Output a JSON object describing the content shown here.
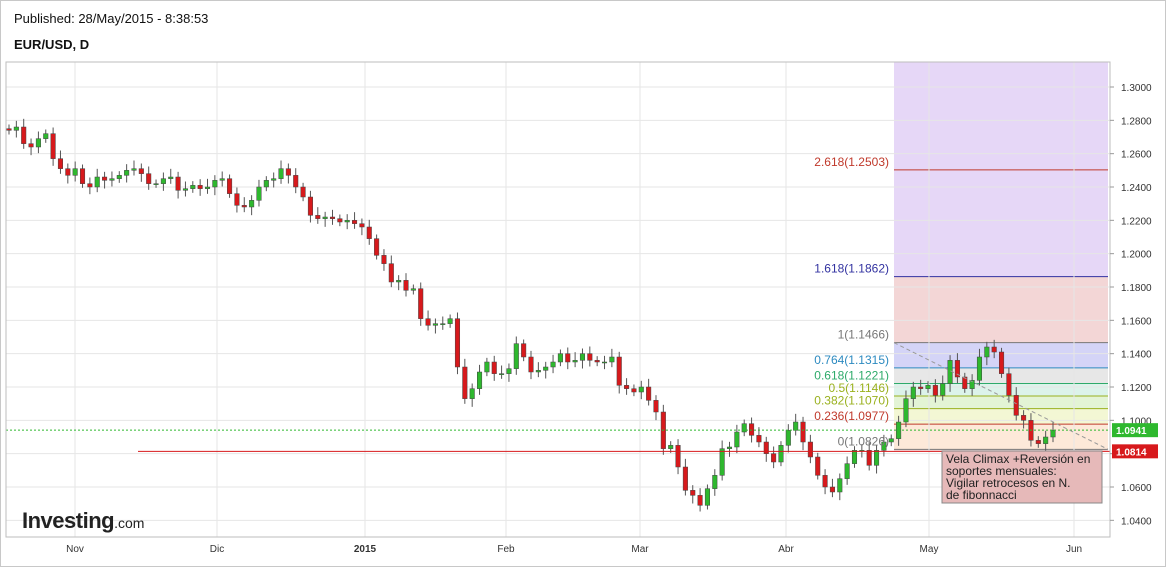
{
  "header": {
    "published": "Published: 28/May/2015 - 8:38:53",
    "symbol": "EUR/USD, D"
  },
  "brand": {
    "name": "Investing",
    "suffix": ".com"
  },
  "colors": {
    "up": "#2eb82e",
    "down": "#d7191c",
    "support_line": "#d7191c",
    "price_label_bg": "#d7191c",
    "last_label_bg": "#2eb82e",
    "grid": "#e6e6e6"
  },
  "chart_data": {
    "type": "candlestick",
    "title": "EUR/USD, D",
    "x_labels": [
      "Nov",
      "Dic",
      "2015",
      "Feb",
      "Mar",
      "Abr",
      "May",
      "Jun"
    ],
    "y_ticks": [
      "1.0400",
      "1.0600",
      "1.0800",
      "1.1000",
      "1.1200",
      "1.1400",
      "1.1600",
      "1.1800",
      "1.2000",
      "1.2200",
      "1.2400",
      "1.2600",
      "1.2800",
      "1.3000"
    ],
    "ylim": [
      1.03,
      1.315
    ],
    "grid": true,
    "last_price": "1.0941",
    "support_level": "1.0814",
    "fibonacci": [
      {
        "label": "0(1.0826)",
        "value": 1.0826,
        "band": "#f6dede"
      },
      {
        "label": "0.236(1.0977)",
        "value": 1.0977,
        "band": "#fde9d9"
      },
      {
        "label": "0.382(1.1070)",
        "value": 1.107,
        "band": "#f3f7d4"
      },
      {
        "label": "0.5(1.1146)",
        "value": 1.1146,
        "band": "#e3f4d5"
      },
      {
        "label": "0.618(1.1221)",
        "value": 1.1221,
        "band": "#dcf3ea"
      },
      {
        "label": "0.764(1.1315)",
        "value": 1.1315,
        "band": "#e7e7e7"
      },
      {
        "label": "1(1.1466)",
        "value": 1.1466,
        "band": "#d4d4f7"
      },
      {
        "label": "1.618(1.1862)",
        "value": 1.1862,
        "band": "#f3d6d6"
      },
      {
        "label": "2.618(1.2503)",
        "value": 1.2503,
        "band": "#e6d7f7"
      }
    ],
    "fib_label_colors": [
      "#777777",
      "#c0392b",
      "#9ab11e",
      "#9ab11e",
      "#2eaa6a",
      "#2c8ac0",
      "#777777",
      "#3232a0",
      "#c0392b"
    ],
    "annotation": "Vela Climax +Reversión en soportes mensuales: Vigilar retrocesos en N. de fibonnacci",
    "closes": [
      1.274,
      1.276,
      1.266,
      1.264,
      1.269,
      1.272,
      1.257,
      1.251,
      1.247,
      1.251,
      1.242,
      1.24,
      1.246,
      1.244,
      1.245,
      1.247,
      1.25,
      1.251,
      1.248,
      1.242,
      1.242,
      1.245,
      1.246,
      1.238,
      1.239,
      1.241,
      1.239,
      1.24,
      1.244,
      1.245,
      1.236,
      1.229,
      1.228,
      1.232,
      1.24,
      1.244,
      1.245,
      1.251,
      1.247,
      1.24,
      1.234,
      1.223,
      1.221,
      1.222,
      1.221,
      1.219,
      1.22,
      1.218,
      1.216,
      1.209,
      1.199,
      1.194,
      1.183,
      1.184,
      1.178,
      1.179,
      1.161,
      1.157,
      1.158,
      1.158,
      1.161,
      1.132,
      1.113,
      1.119,
      1.129,
      1.135,
      1.128,
      1.128,
      1.131,
      1.146,
      1.138,
      1.129,
      1.13,
      1.132,
      1.135,
      1.14,
      1.135,
      1.136,
      1.14,
      1.136,
      1.135,
      1.135,
      1.138,
      1.121,
      1.119,
      1.117,
      1.12,
      1.112,
      1.105,
      1.083,
      1.085,
      1.072,
      1.058,
      1.055,
      1.049,
      1.059,
      1.067,
      1.083,
      1.084,
      1.093,
      1.098,
      1.091,
      1.087,
      1.08,
      1.075,
      1.085,
      1.094,
      1.099,
      1.087,
      1.078,
      1.067,
      1.06,
      1.057,
      1.065,
      1.074,
      1.082,
      1.082,
      1.073,
      1.082,
      1.087,
      1.089,
      1.099,
      1.113,
      1.12,
      1.119,
      1.121,
      1.115,
      1.122,
      1.136,
      1.126,
      1.119,
      1.124,
      1.138,
      1.144,
      1.141,
      1.128,
      1.115,
      1.103,
      1.1,
      1.088,
      1.086,
      1.09,
      1.0941
    ]
  }
}
